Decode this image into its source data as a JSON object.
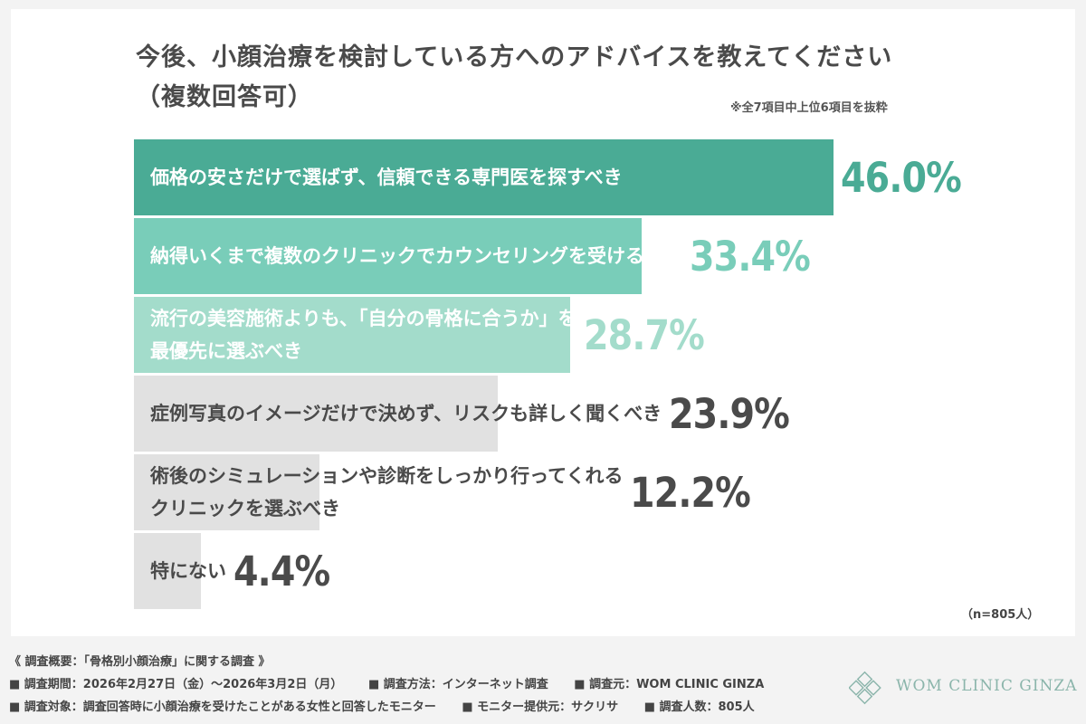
{
  "title_line1": "今後、小顔治療を検討している方へのアドバイスを教えてください",
  "title_line2": "（複数回答可）",
  "note": "※全7項目中上位6項目を抜粋",
  "sample_size": "（n=805人）",
  "chart_data": {
    "type": "bar",
    "orientation": "horizontal",
    "unit": "%",
    "categories": [
      "価格の安さだけで選ばず、信頼できる専門医を探すべき",
      "納得いくまで複数のクリニックでカウンセリングを受けるべき",
      "流行の美容施術よりも、「自分の骨格に合うか」を最優先に選ぶべき",
      "症例写真のイメージだけで決めず、リスクも詳しく聞くべき",
      "術後のシミュレーションや診断をしっかり行ってくれるクリニックを選ぶべき",
      "特にない"
    ],
    "label_lines": [
      [
        "価格の安さだけで選ばず、信頼できる専門医を探すべき"
      ],
      [
        "納得いくまで複数のクリニックでカウンセリングを受けるべき"
      ],
      [
        "流行の美容施術よりも、「自分の骨格に合うか」を",
        "最優先に選ぶべき"
      ],
      [
        "症例写真のイメージだけで決めず、リスクも詳しく聞くべき"
      ],
      [
        "術後のシミュレーションや診断をしっかり行ってくれる",
        "クリニックを選ぶべき"
      ],
      [
        "特にない"
      ]
    ],
    "values": [
      46.0,
      33.4,
      28.7,
      23.9,
      12.2,
      4.4
    ],
    "value_labels": [
      "46.0%",
      "33.4%",
      "28.7%",
      "23.9%",
      "12.2%",
      "4.4%"
    ],
    "bar_colors": [
      "#4aab95",
      "#79cdb9",
      "#a3dccb",
      "#e1e1e1",
      "#e1e1e1",
      "#e1e1e1"
    ],
    "label_colors": [
      "#ffffff",
      "#ffffff",
      "#ffffff",
      "#4a4a4a",
      "#4a4a4a",
      "#4a4a4a"
    ],
    "value_colors": [
      "#4aab95",
      "#79cdb9",
      "#a3dccb",
      "#4a4a4a",
      "#4a4a4a",
      "#4a4a4a"
    ],
    "xlim": [
      0,
      100
    ]
  },
  "footer": {
    "line1": "《 調査概要：「骨格別小顔治療」に関する調査 》",
    "line2": [
      "■ 調査期間：2026年2月27日（金）～2026年3月2日（月）",
      "■ 調査方法：インターネット調査",
      "■ 調査元：WOM CLINIC GINZA"
    ],
    "line3": [
      "■ 調査対象：調査回答時に小顔治療を受けたことがある女性と回答したモニター",
      "■ モニター提供元：サクリサ",
      "■ 調査人数：805人"
    ]
  },
  "logo": {
    "text": "WOM CLINIC GINZA",
    "color": "#8bb5ab"
  }
}
